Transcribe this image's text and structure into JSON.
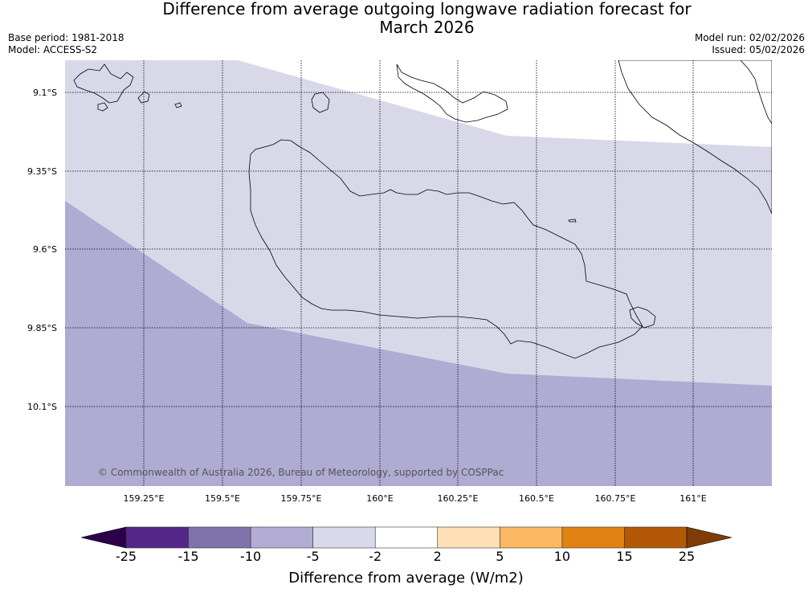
{
  "title": {
    "line1": "Difference from average outgoing longwave radiation forecast for",
    "line2": "March 2026"
  },
  "meta": {
    "base_period": "Base period: 1981-2018",
    "model": "Model: ACCESS-S2",
    "model_run": "Model run: 02/02/2026",
    "issued": "Issued: 05/02/2026"
  },
  "map": {
    "region": "Guadalcanal, Solomon Islands",
    "lat_labels": [
      "9.1°S",
      "9.35°S",
      "9.6°S",
      "9.85°S",
      "10.1°S"
    ],
    "lon_labels": [
      "159.25°E",
      "159.5°E",
      "159.75°E",
      "160°E",
      "160.25°E",
      "160.5°E",
      "160.75°E",
      "161°E"
    ],
    "copyright": "© Commonwealth of Australia 2026, Bureau of Meteorology, supported by COSPPac",
    "zones": [
      {
        "category": "-10 to -5",
        "color": "#b0abd2"
      },
      {
        "category": "-5 to -2",
        "color": "#d8d8e9"
      },
      {
        "category": "-2 to 2",
        "color": "#ffffff"
      }
    ]
  },
  "colorbar": {
    "title": "Difference from average (W/m2)",
    "ticks": [
      "-25",
      "-15",
      "-10",
      "-5",
      "-2",
      "2",
      "5",
      "10",
      "15",
      "25"
    ],
    "colors": [
      "#542788",
      "#8073ac",
      "#b2abd2",
      "#d8daeb",
      "#ffffff",
      "#fee0b6",
      "#fdb863",
      "#e08214",
      "#b35806"
    ],
    "under_color": "#2d004b",
    "over_color": "#7f3b08"
  }
}
